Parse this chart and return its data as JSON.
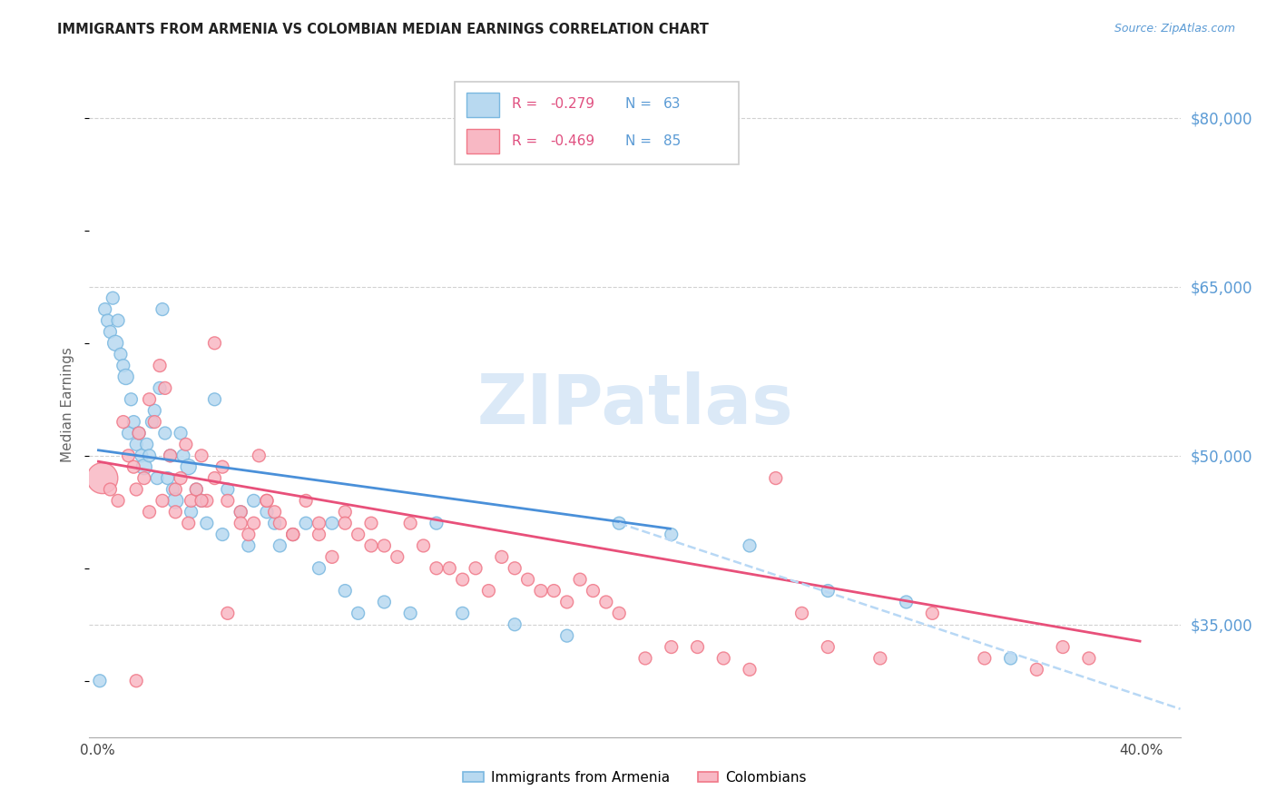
{
  "title": "IMMIGRANTS FROM ARMENIA VS COLOMBIAN MEDIAN EARNINGS CORRELATION CHART",
  "source": "Source: ZipAtlas.com",
  "ylabel": "Median Earnings",
  "y_ticks": [
    35000,
    50000,
    65000,
    80000
  ],
  "y_tick_labels": [
    "$35,000",
    "$50,000",
    "$65,000",
    "$80,000"
  ],
  "y_min": 25000,
  "y_max": 84000,
  "x_min": -0.003,
  "x_max": 0.415,
  "armenia_color_edge": "#7ab8e0",
  "armenia_color_fill": "#b8d9f0",
  "colombia_color_edge": "#f07888",
  "colombia_color_fill": "#f8b8c4",
  "trend_blue_color": "#4a90d9",
  "trend_pink_color": "#e8507a",
  "trend_dashed_color": "#b8d8f5",
  "legend_R_color": "#e05080",
  "legend_N_color": "#5b9bd5",
  "ytick_color": "#5b9bd5",
  "title_color": "#222222",
  "source_color": "#5b9bd5",
  "watermark_color": "#cce0f5",
  "grid_color": "#cccccc",
  "background_color": "#ffffff",
  "watermark_text": "ZIPatlas",
  "legend_R_armenia": "-0.279",
  "legend_N_armenia": "63",
  "legend_R_colombia": "-0.469",
  "legend_N_colombia": "85",
  "armenia_x": [
    0.001,
    0.003,
    0.004,
    0.005,
    0.006,
    0.007,
    0.008,
    0.009,
    0.01,
    0.011,
    0.012,
    0.013,
    0.014,
    0.015,
    0.016,
    0.017,
    0.018,
    0.019,
    0.02,
    0.021,
    0.022,
    0.023,
    0.024,
    0.025,
    0.026,
    0.027,
    0.028,
    0.029,
    0.03,
    0.032,
    0.033,
    0.035,
    0.036,
    0.038,
    0.04,
    0.042,
    0.045,
    0.048,
    0.05,
    0.055,
    0.058,
    0.06,
    0.065,
    0.068,
    0.07,
    0.075,
    0.08,
    0.085,
    0.09,
    0.095,
    0.1,
    0.11,
    0.12,
    0.13,
    0.14,
    0.16,
    0.18,
    0.2,
    0.22,
    0.25,
    0.28,
    0.31,
    0.35
  ],
  "armenia_y": [
    30000,
    63000,
    62000,
    61000,
    64000,
    60000,
    62000,
    59000,
    58000,
    57000,
    52000,
    55000,
    53000,
    51000,
    52000,
    50000,
    49000,
    51000,
    50000,
    53000,
    54000,
    48000,
    56000,
    63000,
    52000,
    48000,
    50000,
    47000,
    46000,
    52000,
    50000,
    49000,
    45000,
    47000,
    46000,
    44000,
    55000,
    43000,
    47000,
    45000,
    42000,
    46000,
    45000,
    44000,
    42000,
    43000,
    44000,
    40000,
    44000,
    38000,
    36000,
    37000,
    36000,
    44000,
    36000,
    35000,
    34000,
    44000,
    43000,
    42000,
    38000,
    37000,
    32000
  ],
  "armenia_sizes": [
    100,
    100,
    100,
    100,
    100,
    150,
    100,
    100,
    100,
    150,
    100,
    100,
    100,
    100,
    100,
    100,
    150,
    100,
    100,
    100,
    100,
    100,
    100,
    100,
    100,
    100,
    100,
    100,
    150,
    100,
    100,
    150,
    100,
    100,
    100,
    100,
    100,
    100,
    100,
    100,
    100,
    100,
    100,
    100,
    100,
    100,
    100,
    100,
    100,
    100,
    100,
    100,
    100,
    100,
    100,
    100,
    100,
    100,
    100,
    100,
    100,
    100,
    100
  ],
  "colombia_x": [
    0.002,
    0.005,
    0.008,
    0.01,
    0.012,
    0.014,
    0.016,
    0.018,
    0.02,
    0.022,
    0.024,
    0.026,
    0.028,
    0.03,
    0.032,
    0.034,
    0.036,
    0.038,
    0.04,
    0.042,
    0.045,
    0.048,
    0.05,
    0.055,
    0.058,
    0.06,
    0.062,
    0.065,
    0.068,
    0.07,
    0.075,
    0.08,
    0.085,
    0.09,
    0.095,
    0.1,
    0.105,
    0.11,
    0.115,
    0.12,
    0.125,
    0.13,
    0.135,
    0.14,
    0.145,
    0.15,
    0.155,
    0.16,
    0.165,
    0.17,
    0.175,
    0.18,
    0.185,
    0.19,
    0.195,
    0.2,
    0.21,
    0.22,
    0.23,
    0.24,
    0.25,
    0.26,
    0.27,
    0.28,
    0.3,
    0.32,
    0.34,
    0.36,
    0.37,
    0.38,
    0.025,
    0.035,
    0.045,
    0.055,
    0.065,
    0.075,
    0.085,
    0.095,
    0.105,
    0.015,
    0.02,
    0.03,
    0.04,
    0.05,
    0.015
  ],
  "colombia_y": [
    48000,
    47000,
    46000,
    53000,
    50000,
    49000,
    52000,
    48000,
    55000,
    53000,
    58000,
    56000,
    50000,
    47000,
    48000,
    51000,
    46000,
    47000,
    50000,
    46000,
    48000,
    49000,
    46000,
    45000,
    43000,
    44000,
    50000,
    46000,
    45000,
    44000,
    43000,
    46000,
    43000,
    41000,
    45000,
    43000,
    44000,
    42000,
    41000,
    44000,
    42000,
    40000,
    40000,
    39000,
    40000,
    38000,
    41000,
    40000,
    39000,
    38000,
    38000,
    37000,
    39000,
    38000,
    37000,
    36000,
    32000,
    33000,
    33000,
    32000,
    31000,
    48000,
    36000,
    33000,
    32000,
    36000,
    32000,
    31000,
    33000,
    32000,
    46000,
    44000,
    60000,
    44000,
    46000,
    43000,
    44000,
    44000,
    42000,
    47000,
    45000,
    45000,
    46000,
    36000,
    30000
  ],
  "colombia_sizes": [
    600,
    100,
    100,
    100,
    100,
    100,
    100,
    100,
    100,
    100,
    100,
    100,
    100,
    100,
    100,
    100,
    100,
    100,
    100,
    100,
    100,
    100,
    100,
    100,
    100,
    100,
    100,
    100,
    100,
    100,
    100,
    100,
    100,
    100,
    100,
    100,
    100,
    100,
    100,
    100,
    100,
    100,
    100,
    100,
    100,
    100,
    100,
    100,
    100,
    100,
    100,
    100,
    100,
    100,
    100,
    100,
    100,
    100,
    100,
    100,
    100,
    100,
    100,
    100,
    100,
    100,
    100,
    100,
    100,
    100,
    100,
    100,
    100,
    100,
    100,
    100,
    100,
    100,
    100,
    100,
    100,
    100,
    100,
    100,
    100
  ],
  "armenia_trend_x": [
    0.0,
    0.22
  ],
  "armenia_trend_y": [
    50500,
    43500
  ],
  "colombia_trend_x": [
    0.0,
    0.4
  ],
  "colombia_trend_y": [
    49500,
    33500
  ],
  "dashed_trend_x": [
    0.2,
    0.415
  ],
  "dashed_trend_y": [
    44000,
    27500
  ]
}
